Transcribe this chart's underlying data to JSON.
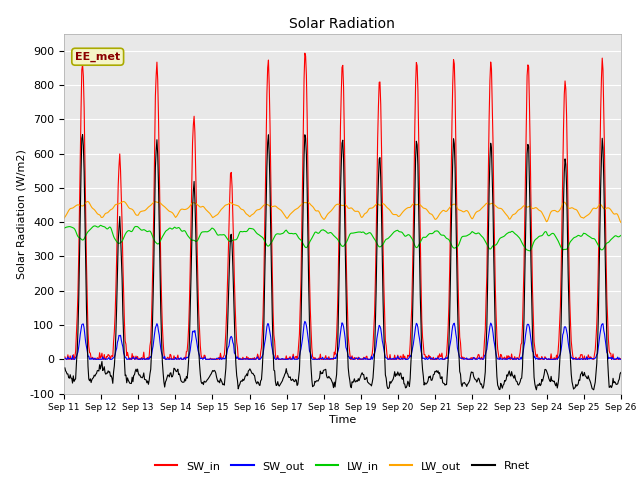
{
  "title": "Solar Radiation",
  "xlabel": "Time",
  "ylabel": "Solar Radiation (W/m2)",
  "ylim": [
    -100,
    950
  ],
  "yticks": [
    -100,
    0,
    100,
    200,
    300,
    400,
    500,
    600,
    700,
    800,
    900
  ],
  "date_start": 11,
  "date_end": 26,
  "colors": {
    "SW_in": "#FF0000",
    "SW_out": "#0000FF",
    "LW_in": "#00CC00",
    "LW_out": "#FFA500",
    "Rnet": "#000000"
  },
  "background_color": "#E8E8E8",
  "annotation_text": "EE_met",
  "annotation_bg": "#F5F5C8",
  "annotation_border": "#CCCC00",
  "fig_width": 6.4,
  "fig_height": 4.8,
  "dpi": 100
}
